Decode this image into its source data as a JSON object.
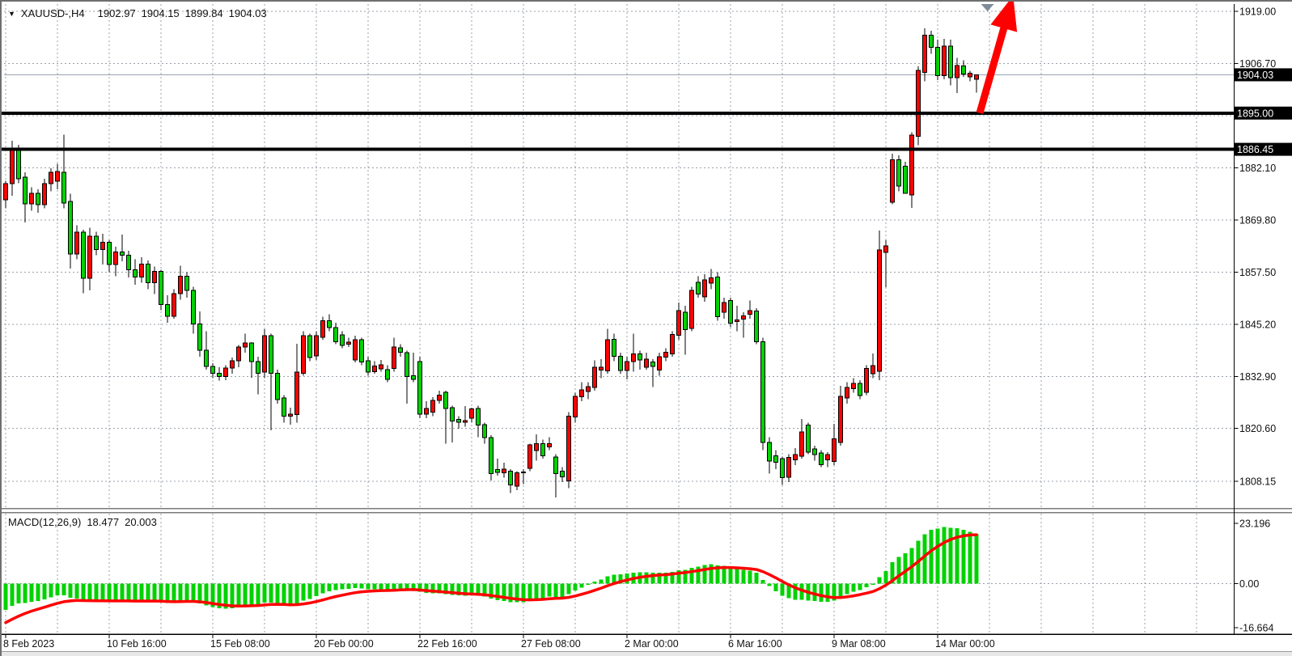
{
  "window": {
    "background": "#ffffff",
    "border_color": "#6f6f6f",
    "bottom_strip_color": "#e8e8e8"
  },
  "quote_bar": {
    "symbol_marker_icon": "down-triangle-icon",
    "symbol_marker_glyph": "▼",
    "symbol_period": "XAUUSD-,H4",
    "open": "1902.97",
    "high": "1904.15",
    "low": "1899.84",
    "close": "1904.03"
  },
  "main_panel": {
    "price_axis_labels": [
      {
        "text": "1919.00",
        "value": 1919.0
      },
      {
        "text": "1906.70",
        "value": 1906.7
      },
      {
        "text": "1882.10",
        "value": 1882.1
      },
      {
        "text": "1869.80",
        "value": 1869.8
      },
      {
        "text": "1857.50",
        "value": 1857.5
      },
      {
        "text": "1845.20",
        "value": 1845.2
      },
      {
        "text": "1832.90",
        "value": 1832.9
      },
      {
        "text": "1820.60",
        "value": 1820.6
      },
      {
        "text": "1808.15",
        "value": 1808.15
      }
    ],
    "grid_extra_values": [
      1894.4
    ],
    "price_tags": [
      {
        "text": "1904.03",
        "value": 1904.03,
        "kind": "current-price"
      },
      {
        "text": "1895.00",
        "value": 1895.0,
        "kind": "level"
      },
      {
        "text": "1886.45",
        "value": 1886.45,
        "kind": "level"
      }
    ],
    "support_resistance_levels": [
      1895.0,
      1886.45
    ],
    "current_price": 1904.03
  },
  "time_axis": {
    "labels": [
      {
        "bar": 0,
        "text": "8 Feb 2023"
      },
      {
        "bar": 16,
        "text": "10 Feb 16:00"
      },
      {
        "bar": 32,
        "text": "15 Feb 08:00"
      },
      {
        "bar": 48,
        "text": "20 Feb 00:00"
      },
      {
        "bar": 64,
        "text": "22 Feb 16:00"
      },
      {
        "bar": 80,
        "text": "27 Feb 08:00"
      },
      {
        "bar": 96,
        "text": "2 Mar 00:00"
      },
      {
        "bar": 112,
        "text": "6 Mar 16:00"
      },
      {
        "bar": 128,
        "text": "9 Mar 08:00"
      },
      {
        "bar": 144,
        "text": "14 Mar 00:00"
      }
    ]
  },
  "macd_panel": {
    "indicator": "MACD",
    "params": "(12,26,9)",
    "macd_value": "18.477",
    "signal_value": "20.003",
    "axis_labels": [
      {
        "text": "23.196",
        "value": 23.196
      },
      {
        "text": "0.00",
        "value": 0.0
      },
      {
        "text": "-16.664",
        "value": -16.664
      }
    ]
  },
  "annotations": {
    "arrow": {
      "type": "trend-arrow",
      "color": "#ff0000",
      "tail_bar": 150.5,
      "tail_price": 1895.0,
      "head_bar": 156.0,
      "head_price": 1920.5
    },
    "shift_marker": {
      "type": "chart-shift-triangle",
      "color": "#7e8b99",
      "bar": 151.7
    }
  },
  "colors": {
    "bull_candle": "#ff0202",
    "bear_candle": "#00d200",
    "candle_outline": "#000000",
    "wick": "#000000",
    "grid": "#9aa0ab",
    "sr_line": "#000000",
    "price_line": "#9aa4b0",
    "macd_histogram": "#00d200",
    "macd_signal": "#ff0000",
    "tag_bg": "#000000",
    "tag_text": "#ffffff",
    "axis_text": "#111111",
    "axis_line": "#000000"
  },
  "chart_data": {
    "type": "candlestick",
    "symbol": "XAUUSD-",
    "timeframe": "H4",
    "bars_total": 151,
    "title": "XAUUSD- H4 with MACD(12,26,9)",
    "ohlc_format": [
      "open",
      "high",
      "low",
      "close"
    ],
    "y_axis_range": [
      1801.7,
      1920.7
    ],
    "x_tick_labels": [
      "8 Feb 2023",
      "10 Feb 16:00",
      "15 Feb 08:00",
      "20 Feb 00:00",
      "22 Feb 16:00",
      "27 Feb 08:00",
      "2 Mar 00:00",
      "6 Mar 16:00",
      "9 Mar 08:00",
      "14 Mar 00:00"
    ],
    "x_tick_bar_indices": [
      0,
      16,
      32,
      48,
      64,
      80,
      96,
      112,
      128,
      144
    ],
    "candles": [
      [
        1874.5,
        1879.0,
        1872.5,
        1878.4
      ],
      [
        1878.4,
        1888.5,
        1875.5,
        1886.2
      ],
      [
        1886.2,
        1887.5,
        1878.5,
        1879.5
      ],
      [
        1879.9,
        1881.0,
        1869.2,
        1873.6
      ],
      [
        1873.6,
        1877.5,
        1872.0,
        1876.1
      ],
      [
        1876.1,
        1877.0,
        1871.5,
        1873.4
      ],
      [
        1873.4,
        1879.5,
        1872.5,
        1878.4
      ],
      [
        1878.4,
        1882.0,
        1876.5,
        1881.0
      ],
      [
        1878.9,
        1883.0,
        1877.0,
        1881.2
      ],
      [
        1881.0,
        1889.9,
        1872.5,
        1873.8
      ],
      [
        1874.2,
        1876.0,
        1858.3,
        1861.8
      ],
      [
        1861.8,
        1868.5,
        1860.5,
        1866.9
      ],
      [
        1866.9,
        1867.5,
        1852.5,
        1856.0
      ],
      [
        1856.0,
        1868.0,
        1853.2,
        1866.0
      ],
      [
        1866.0,
        1867.0,
        1861.5,
        1862.8
      ],
      [
        1862.8,
        1866.5,
        1859.3,
        1864.5
      ],
      [
        1864.5,
        1865.0,
        1857.5,
        1859.3
      ],
      [
        1859.3,
        1863.5,
        1856.5,
        1862.2
      ],
      [
        1862.2,
        1866.3,
        1860.0,
        1861.5
      ],
      [
        1861.5,
        1862.5,
        1856.2,
        1858.0
      ],
      [
        1858.0,
        1860.5,
        1854.5,
        1856.3
      ],
      [
        1856.3,
        1861.0,
        1855.0,
        1859.4
      ],
      [
        1859.4,
        1860.2,
        1853.5,
        1855.0
      ],
      [
        1855.0,
        1858.8,
        1852.3,
        1857.7
      ],
      [
        1857.7,
        1858.0,
        1848.5,
        1849.8
      ],
      [
        1849.8,
        1852.0,
        1845.5,
        1847.1
      ],
      [
        1847.1,
        1853.5,
        1846.5,
        1852.4
      ],
      [
        1852.4,
        1859.0,
        1851.0,
        1856.5
      ],
      [
        1856.5,
        1857.5,
        1851.5,
        1853.2
      ],
      [
        1853.2,
        1854.0,
        1843.0,
        1845.3
      ],
      [
        1845.3,
        1848.2,
        1837.5,
        1839.1
      ],
      [
        1839.1,
        1843.5,
        1834.5,
        1835.2
      ],
      [
        1835.2,
        1836.0,
        1832.5,
        1833.6
      ],
      [
        1833.6,
        1835.0,
        1831.9,
        1832.9
      ],
      [
        1832.9,
        1835.5,
        1832.0,
        1834.9
      ],
      [
        1834.9,
        1837.3,
        1833.5,
        1836.6
      ],
      [
        1836.6,
        1840.3,
        1835.0,
        1839.8
      ],
      [
        1839.8,
        1843.0,
        1838.5,
        1840.8
      ],
      [
        1840.8,
        1841.0,
        1832.6,
        1836.4
      ],
      [
        1836.4,
        1837.5,
        1828.7,
        1833.6
      ],
      [
        1833.9,
        1844.0,
        1832.5,
        1842.5
      ],
      [
        1842.5,
        1843.0,
        1820.2,
        1833.6
      ],
      [
        1833.6,
        1834.5,
        1826.5,
        1827.4
      ],
      [
        1827.8,
        1828.5,
        1822.0,
        1823.5
      ],
      [
        1823.5,
        1825.5,
        1821.5,
        1824.0
      ],
      [
        1823.9,
        1840.6,
        1822.0,
        1833.9
      ],
      [
        1833.6,
        1843.5,
        1833.0,
        1842.5
      ],
      [
        1842.5,
        1843.0,
        1836.5,
        1837.3
      ],
      [
        1837.7,
        1843.5,
        1836.8,
        1842.5
      ],
      [
        1842.1,
        1847.0,
        1841.5,
        1846.0
      ],
      [
        1846.0,
        1847.5,
        1843.5,
        1844.4
      ],
      [
        1844.4,
        1845.5,
        1840.5,
        1841.1
      ],
      [
        1842.7,
        1843.5,
        1839.5,
        1840.2
      ],
      [
        1840.5,
        1842.0,
        1839.8,
        1841.0
      ],
      [
        1836.8,
        1842.5,
        1836.2,
        1841.5
      ],
      [
        1841.5,
        1842.0,
        1835.5,
        1836.3
      ],
      [
        1836.6,
        1837.5,
        1833.0,
        1833.9
      ],
      [
        1834.0,
        1836.5,
        1833.5,
        1835.3
      ],
      [
        1834.7,
        1836.8,
        1834.0,
        1835.6
      ],
      [
        1834.5,
        1835.5,
        1831.5,
        1832.2
      ],
      [
        1834.8,
        1842.0,
        1834.0,
        1839.8
      ],
      [
        1839.6,
        1840.5,
        1837.5,
        1838.6
      ],
      [
        1838.5,
        1839.0,
        1826.5,
        1832.9
      ],
      [
        1833.0,
        1838.5,
        1831.5,
        1832.2
      ],
      [
        1836.4,
        1837.5,
        1823.0,
        1824.0
      ],
      [
        1824.0,
        1827.0,
        1823.0,
        1825.3
      ],
      [
        1824.5,
        1828.0,
        1823.5,
        1827.2
      ],
      [
        1827.2,
        1829.5,
        1826.5,
        1828.5
      ],
      [
        1829.1,
        1829.5,
        1817.0,
        1825.3
      ],
      [
        1825.5,
        1826.0,
        1817.3,
        1822.4
      ],
      [
        1822.7,
        1823.5,
        1820.5,
        1822.1
      ],
      [
        1822.1,
        1825.9,
        1821.0,
        1822.5
      ],
      [
        1823.0,
        1825.5,
        1822.0,
        1825.2
      ],
      [
        1825.3,
        1826.0,
        1818.5,
        1821.4
      ],
      [
        1821.5,
        1822.0,
        1817.0,
        1818.4
      ],
      [
        1818.4,
        1819.0,
        1808.3,
        1810.0
      ],
      [
        1810.9,
        1813.5,
        1809.5,
        1810.2
      ],
      [
        1810.1,
        1812.5,
        1809.0,
        1811.0
      ],
      [
        1810.5,
        1811.0,
        1805.4,
        1807.3
      ],
      [
        1807.0,
        1810.5,
        1806.0,
        1810.1
      ],
      [
        1810.1,
        1811.0,
        1807.5,
        1810.3
      ],
      [
        1811.2,
        1817.0,
        1810.5,
        1816.7
      ],
      [
        1815.4,
        1819.2,
        1813.0,
        1817.0
      ],
      [
        1817.0,
        1818.0,
        1813.5,
        1814.2
      ],
      [
        1816.3,
        1818.5,
        1815.5,
        1817.0
      ],
      [
        1813.9,
        1814.5,
        1804.3,
        1810.0
      ],
      [
        1810.5,
        1811.5,
        1808.0,
        1809.2
      ],
      [
        1808.2,
        1824.5,
        1806.5,
        1823.5
      ],
      [
        1823.3,
        1829.0,
        1822.0,
        1828.2
      ],
      [
        1828.1,
        1831.5,
        1827.0,
        1829.7
      ],
      [
        1829.3,
        1831.5,
        1827.5,
        1830.5
      ],
      [
        1830.3,
        1836.7,
        1829.5,
        1835.0
      ],
      [
        1834.4,
        1837.0,
        1832.5,
        1835.0
      ],
      [
        1834.2,
        1844.1,
        1833.5,
        1841.5
      ],
      [
        1841.6,
        1843.0,
        1836.5,
        1837.6
      ],
      [
        1837.6,
        1838.5,
        1833.5,
        1834.3
      ],
      [
        1834.3,
        1837.5,
        1832.2,
        1836.4
      ],
      [
        1836.4,
        1843.0,
        1834.0,
        1838.2
      ],
      [
        1838.2,
        1839.0,
        1834.5,
        1836.8
      ],
      [
        1835.0,
        1838.5,
        1834.5,
        1837.0
      ],
      [
        1836.3,
        1837.0,
        1830.4,
        1835.2
      ],
      [
        1834.4,
        1838.5,
        1833.0,
        1837.5
      ],
      [
        1837.4,
        1839.5,
        1836.5,
        1838.6
      ],
      [
        1838.2,
        1843.5,
        1837.5,
        1842.8
      ],
      [
        1842.6,
        1850.3,
        1841.5,
        1848.4
      ],
      [
        1848.0,
        1849.5,
        1838.0,
        1843.9
      ],
      [
        1844.2,
        1854.0,
        1843.5,
        1853.2
      ],
      [
        1855.1,
        1856.5,
        1851.5,
        1852.3
      ],
      [
        1851.6,
        1857.0,
        1850.5,
        1855.7
      ],
      [
        1854.9,
        1858.2,
        1853.5,
        1856.1
      ],
      [
        1856.3,
        1857.5,
        1846.0,
        1847.0
      ],
      [
        1848.0,
        1851.5,
        1846.5,
        1850.3
      ],
      [
        1850.8,
        1851.5,
        1844.5,
        1845.4
      ],
      [
        1845.8,
        1849.5,
        1843.5,
        1846.2
      ],
      [
        1846.4,
        1848.0,
        1842.0,
        1847.2
      ],
      [
        1847.5,
        1850.8,
        1846.5,
        1848.4
      ],
      [
        1848.3,
        1849.0,
        1840.5,
        1841.1
      ],
      [
        1841.1,
        1842.0,
        1815.5,
        1817.3
      ],
      [
        1817.3,
        1818.5,
        1810.0,
        1812.9
      ],
      [
        1814.2,
        1815.5,
        1811.0,
        1812.6
      ],
      [
        1813.5,
        1814.0,
        1807.3,
        1809.0
      ],
      [
        1809.1,
        1814.5,
        1808.0,
        1813.8
      ],
      [
        1813.2,
        1816.0,
        1812.0,
        1814.4
      ],
      [
        1814.1,
        1822.8,
        1813.5,
        1819.8
      ],
      [
        1821.4,
        1822.0,
        1814.5,
        1815.0
      ],
      [
        1815.8,
        1816.5,
        1813.0,
        1814.4
      ],
      [
        1814.8,
        1815.5,
        1811.5,
        1812.1
      ],
      [
        1813.2,
        1815.0,
        1811.5,
        1814.4
      ],
      [
        1812.8,
        1821.7,
        1812.0,
        1818.2
      ],
      [
        1817.3,
        1830.7,
        1816.5,
        1828.2
      ],
      [
        1827.8,
        1831.5,
        1826.5,
        1830.3
      ],
      [
        1830.0,
        1832.5,
        1829.0,
        1831.2
      ],
      [
        1831.2,
        1832.0,
        1827.5,
        1828.4
      ],
      [
        1829.1,
        1835.5,
        1828.5,
        1834.8
      ],
      [
        1833.5,
        1838.3,
        1832.5,
        1835.4
      ],
      [
        1834.1,
        1867.3,
        1832.0,
        1862.7
      ],
      [
        1862.1,
        1865.0,
        1853.9,
        1863.7
      ],
      [
        1874.0,
        1885.4,
        1873.5,
        1884.0
      ],
      [
        1884.0,
        1885.0,
        1876.5,
        1877.8
      ],
      [
        1882.5,
        1883.5,
        1876.0,
        1876.1
      ],
      [
        1875.7,
        1890.5,
        1872.6,
        1889.8
      ],
      [
        1889.5,
        1906.0,
        1887.4,
        1905.1
      ],
      [
        1904.6,
        1915.0,
        1902.5,
        1913.4
      ],
      [
        1913.4,
        1914.4,
        1909.0,
        1910.5
      ],
      [
        1910.5,
        1912.3,
        1902.8,
        1903.8
      ],
      [
        1903.8,
        1912.5,
        1903.0,
        1910.8
      ],
      [
        1910.8,
        1912.3,
        1901.5,
        1903.4
      ],
      [
        1903.4,
        1908.0,
        1899.7,
        1906.2
      ],
      [
        1906.1,
        1907.5,
        1903.5,
        1904.2
      ],
      [
        1903.5,
        1905.0,
        1902.5,
        1904.4
      ],
      [
        1902.97,
        1904.15,
        1899.84,
        1904.03
      ]
    ],
    "macd": {
      "fast": 12,
      "slow": 26,
      "signal_period": 9,
      "current_macd": 18.477,
      "current_signal": 20.003,
      "panel_max": 23.196,
      "panel_min": -16.664,
      "seed_macd_offset_fast": -3.0,
      "seed_macd_offset_slow": 8.0,
      "seed_signal": -16.0
    }
  }
}
